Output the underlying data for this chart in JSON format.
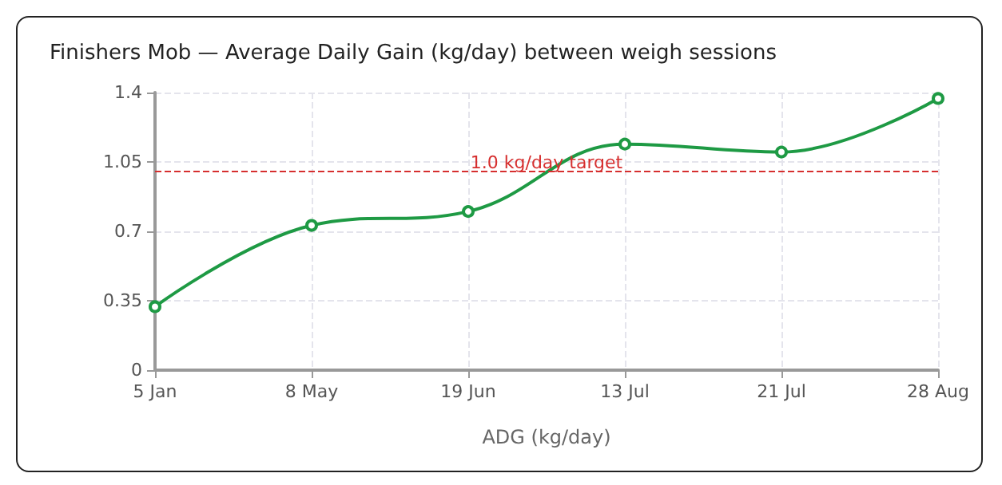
{
  "chart_data": {
    "type": "line",
    "title": "Finishers Mob — Average Daily Gain (kg/day) between weigh sessions",
    "xlabel": "ADG (kg/day)",
    "categories": [
      "5 Jan",
      "8 May",
      "19 Jun",
      "13 Jul",
      "21 Jul",
      "28 Aug"
    ],
    "series": [
      {
        "color": "#1e9a44",
        "values": [
          0.32,
          0.73,
          0.8,
          1.14,
          1.1,
          1.37
        ]
      }
    ],
    "ylim": [
      0,
      1.4
    ],
    "yticks": [
      0,
      0.35,
      0.7,
      1.05,
      1.4
    ],
    "grid": true,
    "marker": "circle",
    "line_style": "solid",
    "ref_lines": [
      {
        "axis": "y",
        "value": 1.0,
        "label": "1.0 kg/day target",
        "color": "#d62f2f",
        "line_style": "dashed"
      }
    ]
  }
}
